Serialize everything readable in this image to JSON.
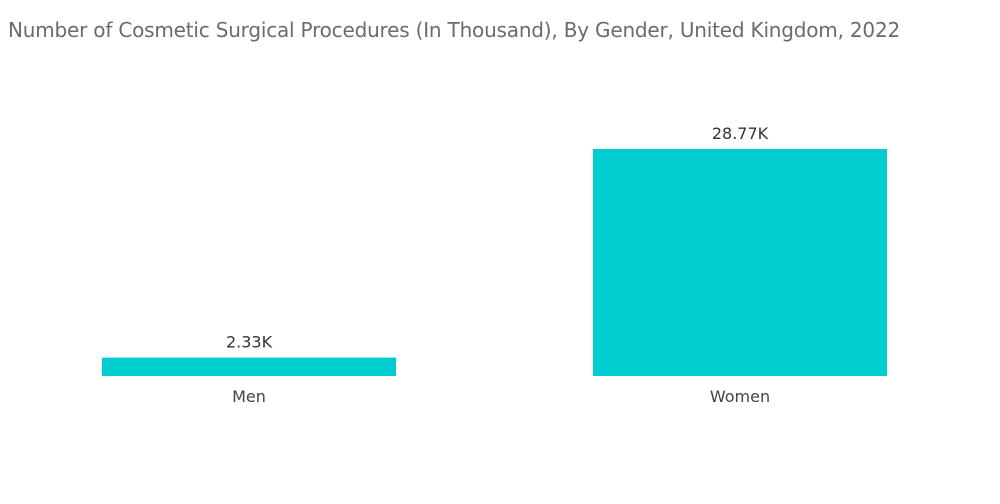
{
  "chart_data": {
    "type": "bar",
    "title": "Number of Cosmetic Surgical Procedures (In Thousand), By Gender, United Kingdom, 2022",
    "xlabel": "",
    "ylabel": "",
    "categories": [
      "Men",
      "Women"
    ],
    "values": [
      2.33,
      28.77
    ],
    "data_labels": [
      "2.33K",
      "28.77K"
    ],
    "ylim": [
      0,
      28.77
    ],
    "grid": false,
    "legend": "none",
    "colors": {
      "bar": "#00CDD0"
    }
  }
}
